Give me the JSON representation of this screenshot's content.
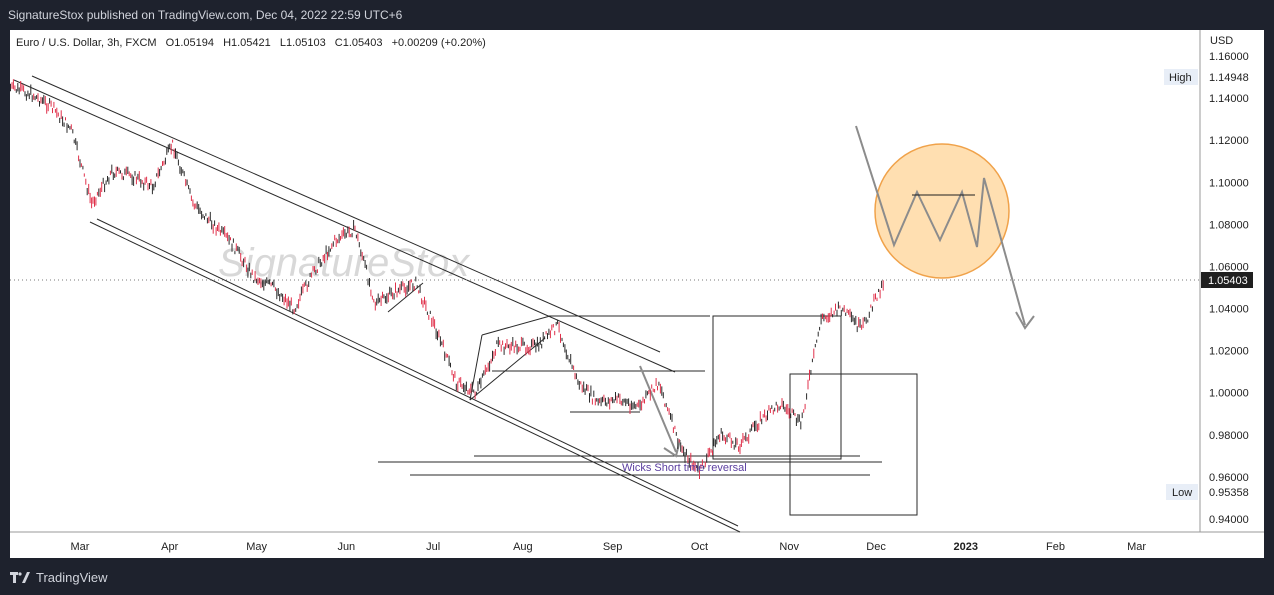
{
  "header": {
    "published_text": "SignatureStox published on TradingView.com, Dec 04, 2022 22:59 UTC+6"
  },
  "legend": {
    "symbol": "Euro / U.S. Dollar, 3h, FXCM",
    "open": "O1.05194",
    "high": "H1.05421",
    "low": "L1.05103",
    "close": "C1.05403",
    "change": "+0.00209 (+0.20%)"
  },
  "watermark": "SignatureStox",
  "annotation": "Wicks Short time reversal",
  "footer": {
    "brand": "TradingView"
  },
  "price_axis": {
    "currency": "USD",
    "high_label": "High",
    "high_value": "1.14948",
    "low_label": "Low",
    "low_value": "0.95358",
    "last_value": "1.05403"
  },
  "colors": {
    "candle": "#e0314b",
    "line": "#1f1f1f",
    "arrow": "#8c8c8c",
    "circle_fill": "#ffd9a3",
    "circle_stroke": "#f0a24a",
    "tag_bg": "#e8eef7"
  },
  "chart_data": {
    "type": "line",
    "title": "Euro / U.S. Dollar, 3h, FXCM",
    "xlabel": "",
    "ylabel": "",
    "x_ticks": [
      "Mar",
      "Apr",
      "May",
      "Jun",
      "Jul",
      "Aug",
      "Sep",
      "Oct",
      "Nov",
      "Dec",
      "2023",
      "Feb",
      "Mar"
    ],
    "y_ticks": [
      0.94,
      0.96,
      0.98,
      1.0,
      1.02,
      1.04,
      1.06,
      1.08,
      1.1,
      1.12,
      1.14,
      1.16
    ],
    "ylim": [
      0.93,
      1.17
    ],
    "grid": false,
    "series": [
      {
        "x": [
          "2022-02-05",
          "2022-02-12",
          "2022-02-19",
          "2022-02-26",
          "2022-03-05",
          "2022-03-12",
          "2022-03-19",
          "2022-03-26",
          "2022-04-02",
          "2022-04-09",
          "2022-04-16",
          "2022-04-23",
          "2022-04-30",
          "2022-05-07",
          "2022-05-14",
          "2022-05-21",
          "2022-05-28",
          "2022-06-04",
          "2022-06-11",
          "2022-06-18",
          "2022-06-25",
          "2022-07-02",
          "2022-07-09",
          "2022-07-16",
          "2022-07-23",
          "2022-07-30",
          "2022-08-06",
          "2022-08-13",
          "2022-08-20",
          "2022-08-27",
          "2022-09-03",
          "2022-09-10",
          "2022-09-17",
          "2022-09-24",
          "2022-10-01",
          "2022-10-08",
          "2022-10-15",
          "2022-10-22",
          "2022-10-29",
          "2022-11-05",
          "2022-11-12",
          "2022-11-19",
          "2022-11-26",
          "2022-12-04"
        ],
        "y": [
          1.145,
          1.142,
          1.136,
          1.125,
          1.09,
          1.105,
          1.103,
          1.098,
          1.118,
          1.09,
          1.08,
          1.07,
          1.055,
          1.05,
          1.04,
          1.058,
          1.072,
          1.078,
          1.042,
          1.048,
          1.052,
          1.03,
          1.005,
          1.0,
          1.022,
          1.022,
          1.022,
          1.032,
          1.005,
          0.995,
          0.997,
          0.993,
          1.005,
          0.975,
          0.962,
          0.98,
          0.975,
          0.987,
          0.995,
          0.985,
          1.035,
          1.04,
          1.03,
          1.054
        ]
      }
    ],
    "annotation": "Wicks Short time reversal"
  }
}
